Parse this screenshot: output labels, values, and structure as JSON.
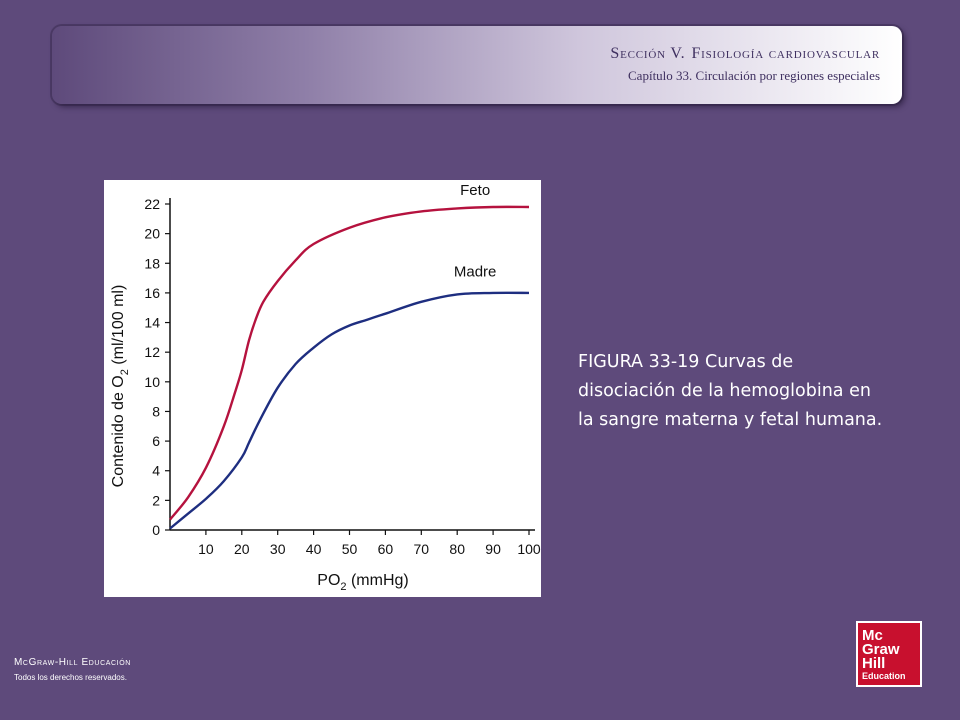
{
  "header": {
    "section": "Sección V.",
    "title": "Fisiología cardiovascular",
    "chapter": "Capítulo 33.  Circulación por regiones especiales"
  },
  "caption": "FIGURA 33-19 Curvas de disociación de la hemoglobina en la sangre materna y fetal humana.",
  "footer": {
    "brand": "McGraw-Hill Educación",
    "rights": "Todos los derechos reservados."
  },
  "logo": {
    "line1": "Mc",
    "line2": "Graw",
    "line3": "Hill",
    "line4": "Education"
  },
  "colors": {
    "background": "#5e4a7b",
    "feto": "#b5123e",
    "madre": "#1e2e80",
    "logo": "#c8102e"
  },
  "chart_data": {
    "type": "line",
    "title": "",
    "xlabel": "PO",
    "xlabel_sub": "2",
    "xlabel_unit": "(mmHg)",
    "ylabel": "Contenido de O",
    "ylabel_sub": "2",
    "ylabel_unit": "(ml/100 ml)",
    "xlim": [
      0,
      100
    ],
    "ylim": [
      0,
      22
    ],
    "xticks": [
      10,
      20,
      30,
      40,
      50,
      60,
      70,
      80,
      90,
      100
    ],
    "yticks": [
      0,
      2,
      4,
      6,
      8,
      10,
      12,
      14,
      16,
      18,
      20,
      22
    ],
    "grid": false,
    "series": [
      {
        "name": "Feto",
        "x": [
          0,
          5,
          10,
          15,
          18,
          20,
          22,
          24,
          26,
          30,
          35,
          40,
          50,
          60,
          70,
          80,
          90,
          100
        ],
        "y": [
          0.7,
          2.2,
          4.2,
          7.0,
          9.2,
          10.8,
          12.8,
          14.3,
          15.4,
          16.8,
          18.2,
          19.3,
          20.4,
          21.1,
          21.5,
          21.7,
          21.8,
          21.8
        ]
      },
      {
        "name": "Madre",
        "x": [
          0,
          5,
          10,
          15,
          20,
          22,
          25,
          30,
          35,
          40,
          45,
          50,
          55,
          60,
          70,
          80,
          90,
          100
        ],
        "y": [
          0.1,
          1.1,
          2.1,
          3.3,
          4.9,
          5.9,
          7.4,
          9.6,
          11.2,
          12.3,
          13.2,
          13.8,
          14.2,
          14.6,
          15.4,
          15.9,
          16.0,
          16.0
        ]
      }
    ]
  }
}
